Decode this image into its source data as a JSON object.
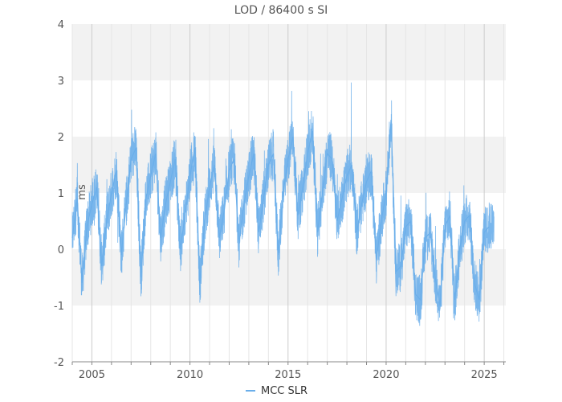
{
  "chart_data": {
    "type": "line",
    "title": "LOD / 86400 s SI",
    "ylabel": "ms",
    "xlabel": "",
    "xlim": [
      2004.0,
      2026.1
    ],
    "ylim": [
      -2,
      4
    ],
    "x_ticks": [
      2005,
      2010,
      2015,
      2020,
      2025
    ],
    "y_ticks": [
      -2,
      -1,
      0,
      1,
      2,
      3,
      4
    ],
    "grid": "vertical lines every year; alternating horizontal bands",
    "legend_position": "bottom-center",
    "series": [
      {
        "name": "MCC SLR",
        "color": "#6aaeea",
        "x": [
          2004.0,
          2004.25,
          2004.5,
          2004.75,
          2005.0,
          2005.25,
          2005.5,
          2005.75,
          2006.0,
          2006.25,
          2006.5,
          2006.75,
          2007.0,
          2007.25,
          2007.5,
          2007.75,
          2008.0,
          2008.25,
          2008.5,
          2008.75,
          2009.0,
          2009.25,
          2009.5,
          2009.75,
          2010.0,
          2010.25,
          2010.5,
          2010.75,
          2011.0,
          2011.25,
          2011.5,
          2011.75,
          2012.0,
          2012.25,
          2012.5,
          2012.75,
          2013.0,
          2013.25,
          2013.5,
          2013.75,
          2014.0,
          2014.25,
          2014.5,
          2014.75,
          2015.0,
          2015.25,
          2015.5,
          2015.75,
          2016.0,
          2016.25,
          2016.5,
          2016.75,
          2017.0,
          2017.25,
          2017.5,
          2017.75,
          2018.0,
          2018.25,
          2018.5,
          2018.75,
          2019.0,
          2019.25,
          2019.5,
          2019.75,
          2020.0,
          2020.25,
          2020.5,
          2020.75,
          2021.0,
          2021.25,
          2021.5,
          2021.75,
          2022.0,
          2022.25,
          2022.5,
          2022.75,
          2023.0,
          2023.25,
          2023.5,
          2023.75,
          2024.0,
          2024.25,
          2024.5,
          2024.75,
          2025.0,
          2025.25
        ],
        "y": [
          0.2,
          0.9,
          -0.6,
          0.4,
          0.8,
          1.1,
          -0.3,
          0.5,
          1.0,
          1.4,
          -0.1,
          0.8,
          1.6,
          1.8,
          -0.5,
          0.9,
          1.3,
          1.7,
          0.2,
          0.8,
          1.2,
          1.6,
          0.0,
          0.6,
          1.3,
          1.8,
          -0.6,
          0.5,
          1.1,
          1.5,
          0.2,
          0.7,
          1.4,
          1.6,
          0.1,
          0.8,
          1.3,
          1.7,
          0.3,
          0.9,
          1.5,
          1.7,
          -0.1,
          1.0,
          1.6,
          2.0,
          0.6,
          1.1,
          1.7,
          2.1,
          0.3,
          1.0,
          1.7,
          1.6,
          0.5,
          0.9,
          1.3,
          1.5,
          0.3,
          0.8,
          1.2,
          1.4,
          -0.2,
          0.5,
          1.0,
          2.3,
          -0.4,
          -0.3,
          0.4,
          0.5,
          -0.8,
          -0.9,
          0.2,
          0.3,
          -0.5,
          -1.0,
          0.4,
          0.6,
          -0.9,
          0.0,
          0.5,
          0.6,
          -0.6,
          -0.9,
          0.3,
          0.4
        ]
      }
    ]
  }
}
